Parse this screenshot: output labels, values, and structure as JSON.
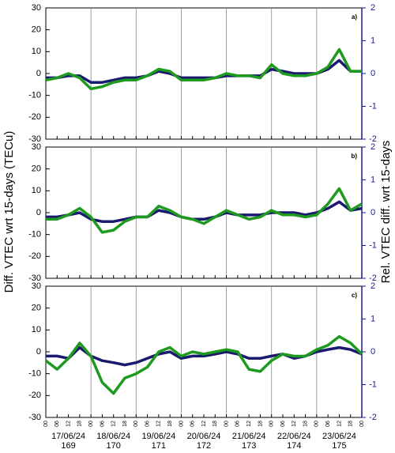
{
  "chart_data": [
    {
      "type": "line",
      "panel_label": "a)",
      "ylabel": "Diff. VTEC wrt 15-days (TECu)",
      "y2label": "Rel. VTEC diff. wrt 15-days",
      "x": [
        0,
        6,
        12,
        18,
        24,
        30,
        36,
        42,
        48,
        54,
        60,
        66,
        72,
        78,
        84,
        90,
        96,
        102,
        108,
        114,
        120,
        126,
        132,
        138,
        144,
        150,
        156,
        162,
        168
      ],
      "xlim": [
        0,
        168
      ],
      "ylim": [
        -30,
        30
      ],
      "yticks": [
        -30,
        -20,
        -10,
        0,
        10,
        20,
        30
      ],
      "y2lim": [
        -2,
        2
      ],
      "y2ticks": [
        -2,
        -1,
        0,
        1,
        2
      ],
      "series": [
        {
          "color": "#1a1a6e",
          "axis": "y2",
          "values": [
            -0.13,
            -0.13,
            -0.07,
            -0.07,
            -0.27,
            -0.27,
            -0.2,
            -0.13,
            -0.13,
            -0.07,
            0.07,
            0,
            -0.13,
            -0.13,
            -0.13,
            -0.13,
            -0.07,
            -0.07,
            -0.07,
            -0.07,
            0.13,
            0.07,
            0,
            0,
            0,
            0.13,
            0.4,
            0.07,
            0.07
          ]
        },
        {
          "color": "#1e9a1e",
          "values": [
            -3,
            -2,
            0,
            -2,
            -7,
            -6,
            -4,
            -3,
            -3,
            -1,
            2,
            1,
            -3,
            -3,
            -3,
            -2,
            0,
            -1,
            -1,
            -2,
            4,
            0,
            -1,
            -1,
            0,
            3,
            11,
            1,
            1
          ]
        }
      ]
    },
    {
      "type": "line",
      "panel_label": "b)",
      "x": [
        0,
        6,
        12,
        18,
        24,
        30,
        36,
        42,
        48,
        54,
        60,
        66,
        72,
        78,
        84,
        90,
        96,
        102,
        108,
        114,
        120,
        126,
        132,
        138,
        144,
        150,
        156,
        162,
        168
      ],
      "xlim": [
        0,
        168
      ],
      "ylim": [
        -30,
        30
      ],
      "yticks": [
        -30,
        -20,
        -10,
        0,
        10,
        20,
        30
      ],
      "y2lim": [
        -2,
        2
      ],
      "y2ticks": [
        -2,
        -1,
        0,
        1,
        2
      ],
      "series": [
        {
          "color": "#1a1a6e",
          "axis": "y2",
          "values": [
            -0.13,
            -0.13,
            -0.07,
            0,
            -0.2,
            -0.27,
            -0.27,
            -0.2,
            -0.13,
            -0.13,
            0.07,
            0,
            -0.13,
            -0.2,
            -0.2,
            -0.13,
            0,
            -0.07,
            -0.07,
            -0.07,
            0,
            0,
            0,
            -0.07,
            0,
            0.13,
            0.33,
            0.07,
            0.13
          ]
        },
        {
          "color": "#1e9a1e",
          "values": [
            -3,
            -3,
            -1,
            2,
            -2,
            -9,
            -8,
            -4,
            -2,
            -2,
            3,
            1,
            -2,
            -3,
            -5,
            -2,
            1,
            -1,
            -3,
            -2,
            1,
            -1,
            -1,
            -2,
            -1,
            4,
            11,
            1,
            4
          ]
        }
      ]
    },
    {
      "type": "line",
      "panel_label": "c)",
      "x": [
        0,
        6,
        12,
        18,
        24,
        30,
        36,
        42,
        48,
        54,
        60,
        66,
        72,
        78,
        84,
        90,
        96,
        102,
        108,
        114,
        120,
        126,
        132,
        138,
        144,
        150,
        156,
        162,
        168
      ],
      "xlim": [
        0,
        168
      ],
      "ylim": [
        -30,
        30
      ],
      "yticks": [
        -30,
        -20,
        -10,
        0,
        10,
        20,
        30
      ],
      "y2lim": [
        -2,
        2
      ],
      "y2ticks": [
        -2,
        -1,
        0,
        1,
        2
      ],
      "xticks": [
        {
          "value": 0,
          "label": "00"
        },
        {
          "value": 6,
          "label": "06"
        },
        12,
        18,
        {
          "value": 24,
          "label": "00"
        },
        {
          "value": 30,
          "label": "06"
        },
        {
          "value": 36,
          "label": "12"
        },
        {
          "value": 42,
          "label": "18"
        },
        {
          "value": 48,
          "label": "00"
        },
        {
          "value": 54,
          "label": "06"
        },
        {
          "value": 60,
          "label": "12"
        },
        {
          "value": 66,
          "label": "18"
        },
        {
          "value": 72,
          "label": "00"
        },
        {
          "value": 78,
          "label": "06"
        },
        {
          "value": 84,
          "label": "12"
        },
        {
          "value": 90,
          "label": "18"
        },
        {
          "value": 96,
          "label": "00"
        },
        {
          "value": 102,
          "label": "06"
        },
        {
          "value": 108,
          "label": "12"
        },
        {
          "value": 114,
          "label": "18"
        },
        {
          "value": 120,
          "label": "00"
        },
        {
          "value": 126,
          "label": "06"
        },
        {
          "value": 132,
          "label": "12"
        },
        {
          "value": 138,
          "label": "18"
        },
        {
          "value": 144,
          "label": "00"
        },
        {
          "value": 150,
          "label": "06"
        },
        {
          "value": 156,
          "label": "12"
        },
        {
          "value": 162,
          "label": "18"
        },
        {
          "value": 168,
          "label": "00"
        }
      ],
      "days": [
        {
          "date": "17/06/24",
          "doy": 169
        },
        {
          "date": "18/06/24",
          "doy": 170
        },
        {
          "date": "19/06/24",
          "doy": 171
        },
        {
          "date": "20/06/24",
          "doy": 172
        },
        {
          "date": "21/06/24",
          "doy": 173
        },
        {
          "date": "22/06/24",
          "doy": 174
        },
        {
          "date": "23/06/24",
          "doy": 175
        }
      ],
      "series": [
        {
          "color": "#1a1a6e",
          "axis": "y2",
          "values": [
            -0.13,
            -0.13,
            -0.2,
            0.13,
            -0.13,
            -0.27,
            -0.33,
            -0.4,
            -0.33,
            -0.2,
            -0.07,
            0,
            -0.2,
            -0.13,
            -0.13,
            -0.07,
            0,
            -0.07,
            -0.2,
            -0.2,
            -0.13,
            -0.07,
            -0.2,
            -0.13,
            0,
            0.07,
            0.13,
            0.07,
            -0.07
          ]
        },
        {
          "color": "#1e9a1e",
          "values": [
            -4,
            -8,
            -3,
            4,
            -2,
            -14,
            -19,
            -12,
            -10,
            -7,
            0,
            2,
            -2,
            0,
            -1,
            0,
            1,
            0,
            -8,
            -9,
            -4,
            -1,
            -2,
            -2,
            1,
            3,
            7,
            4,
            -1
          ]
        }
      ]
    }
  ]
}
